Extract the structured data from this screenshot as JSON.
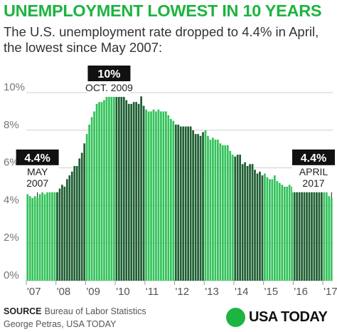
{
  "header": {
    "title": "UNEMPLOYMENT LOWEST IN 10 YEARS",
    "subtitle": "The U.S. unemployment rate dropped to 4.4% in April, the lowest since May 2007:"
  },
  "footer": {
    "source_label": "SOURCE",
    "source_text": "Bureau of Labor Statistics",
    "credit": "George Petras, USA TODAY",
    "brand": "USA TODAY"
  },
  "colors": {
    "title": "#1db440",
    "bar_light": "#33c25a",
    "bar_dark": "#1f5f33",
    "grid": "#cfcfcf",
    "callout_bg": "#111111"
  },
  "chart_data": {
    "type": "bar",
    "ylim": [
      0,
      10
    ],
    "yticks": [
      {
        "value": 0,
        "label": "0%"
      },
      {
        "value": 2,
        "label": "2%"
      },
      {
        "value": 4,
        "label": "4%"
      },
      {
        "value": 6,
        "label": "6%"
      },
      {
        "value": 8,
        "label": "8%"
      },
      {
        "value": 10,
        "label": "10%"
      }
    ],
    "xticks": [
      "'07",
      "'08",
      "'09",
      "'10",
      "'11",
      "'12",
      "'13",
      "'14",
      "'15",
      "'16",
      "'17"
    ],
    "start": "2007-01",
    "end": "2017-04",
    "grid": true,
    "values": [
      4.6,
      4.5,
      4.4,
      4.5,
      4.4,
      4.6,
      4.7,
      4.6,
      4.7,
      4.7,
      4.7,
      5.0,
      5.0,
      4.9,
      5.1,
      5.0,
      5.4,
      5.6,
      5.8,
      6.1,
      6.1,
      6.5,
      6.8,
      7.3,
      7.8,
      8.3,
      8.7,
      9.0,
      9.4,
      9.5,
      9.5,
      9.6,
      9.8,
      10.0,
      9.9,
      9.9,
      9.8,
      9.8,
      9.9,
      9.9,
      9.6,
      9.4,
      9.4,
      9.5,
      9.5,
      9.4,
      9.8,
      9.3,
      9.1,
      9.0,
      9.0,
      9.1,
      9.0,
      9.1,
      9.0,
      9.0,
      9.0,
      8.8,
      8.6,
      8.5,
      8.3,
      8.3,
      8.2,
      8.2,
      8.2,
      8.2,
      8.2,
      8.0,
      7.8,
      7.8,
      7.7,
      7.9,
      8.0,
      7.7,
      7.5,
      7.6,
      7.5,
      7.5,
      7.3,
      7.2,
      7.2,
      7.2,
      6.9,
      6.7,
      6.6,
      6.7,
      6.7,
      6.2,
      6.3,
      6.1,
      6.2,
      6.2,
      5.9,
      5.7,
      5.8,
      5.6,
      5.7,
      5.5,
      5.4,
      5.4,
      5.6,
      5.3,
      5.2,
      5.1,
      5.0,
      5.0,
      5.1,
      5.0,
      4.9,
      4.9,
      5.0,
      5.1,
      4.8,
      4.9,
      4.8,
      4.9,
      5.0,
      4.9,
      4.7,
      4.7,
      4.8,
      4.7,
      4.5,
      4.4
    ],
    "annotations": [
      {
        "value_label": "4.4%",
        "date_label": "MAY 2007",
        "date_lines": [
          "MAY",
          "2007"
        ],
        "date": "2007-05",
        "value": 4.4
      },
      {
        "value_label": "10%",
        "date_label": "OCT. 2009",
        "date_lines": [
          "OCT. 2009"
        ],
        "date": "2009-10",
        "value": 10.0
      },
      {
        "value_label": "4.4%",
        "date_label": "APRIL 2017",
        "date_lines": [
          "APRIL",
          "2017"
        ],
        "date": "2017-04",
        "value": 4.4
      }
    ]
  }
}
